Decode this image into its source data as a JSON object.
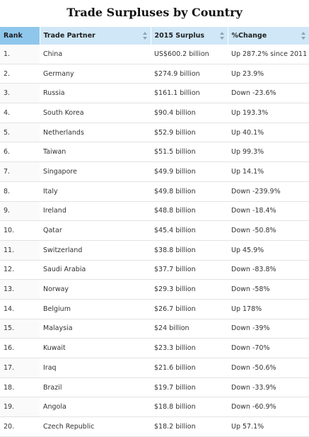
{
  "page": {
    "title": "Trade Surpluses by Country"
  },
  "table": {
    "headers": {
      "rank": "Rank",
      "partner": "Trade Partner",
      "surplus": "2015 Surplus",
      "change": "%Change"
    },
    "sorted_column": "rank",
    "header_color": "#cfe7f7",
    "sorted_header_color": "#8fc7ec",
    "rows": [
      {
        "rank": "1.",
        "partner": "China",
        "surplus": "US$600.2 billion",
        "change": "Up 287.2% since 2011"
      },
      {
        "rank": "2.",
        "partner": "Germany",
        "surplus": "$274.9 billion",
        "change": "Up 23.9%"
      },
      {
        "rank": "3.",
        "partner": "Russia",
        "surplus": "$161.1 billion",
        "change": "Down -23.6%"
      },
      {
        "rank": "4.",
        "partner": "South Korea",
        "surplus": "$90.4 billion",
        "change": "Up 193.3%"
      },
      {
        "rank": "5.",
        "partner": "Netherlands",
        "surplus": "$52.9 billion",
        "change": "Up 40.1%"
      },
      {
        "rank": "6.",
        "partner": "Taiwan",
        "surplus": "$51.5 billion",
        "change": "Up 99.3%"
      },
      {
        "rank": "7.",
        "partner": "Singapore",
        "surplus": "$49.9 billion",
        "change": "Up 14.1%"
      },
      {
        "rank": "8.",
        "partner": "Italy",
        "surplus": "$49.8 billion",
        "change": "Down -239.9%"
      },
      {
        "rank": "9.",
        "partner": "Ireland",
        "surplus": "$48.8 billion",
        "change": "Down -18.4%"
      },
      {
        "rank": "10.",
        "partner": "Qatar",
        "surplus": "$45.4 billion",
        "change": "Down -50.8%"
      },
      {
        "rank": "11.",
        "partner": "Switzerland",
        "surplus": "$38.8 billion",
        "change": "Up 45.9%"
      },
      {
        "rank": "12.",
        "partner": "Saudi Arabia",
        "surplus": "$37.7 billion",
        "change": "Down -83.8%"
      },
      {
        "rank": "13.",
        "partner": "Norway",
        "surplus": "$29.3 billion",
        "change": "Down -58%"
      },
      {
        "rank": "14.",
        "partner": "Belgium",
        "surplus": "$26.7 billion",
        "change": "Up 178%"
      },
      {
        "rank": "15.",
        "partner": "Malaysia",
        "surplus": "$24 billion",
        "change": "Down -39%"
      },
      {
        "rank": "16.",
        "partner": "Kuwait",
        "surplus": "$23.3 billion",
        "change": "Down -70%"
      },
      {
        "rank": "17.",
        "partner": "Iraq",
        "surplus": "$21.6 billion",
        "change": "Down -50.6%"
      },
      {
        "rank": "18.",
        "partner": "Brazil",
        "surplus": "$19.7 billion",
        "change": "Down -33.9%"
      },
      {
        "rank": "19.",
        "partner": "Angola",
        "surplus": "$18.8 billion",
        "change": "Down -60.9%"
      },
      {
        "rank": "20.",
        "partner": "Czech Republic",
        "surplus": "$18.2 billion",
        "change": "Up 57.1%"
      }
    ]
  }
}
